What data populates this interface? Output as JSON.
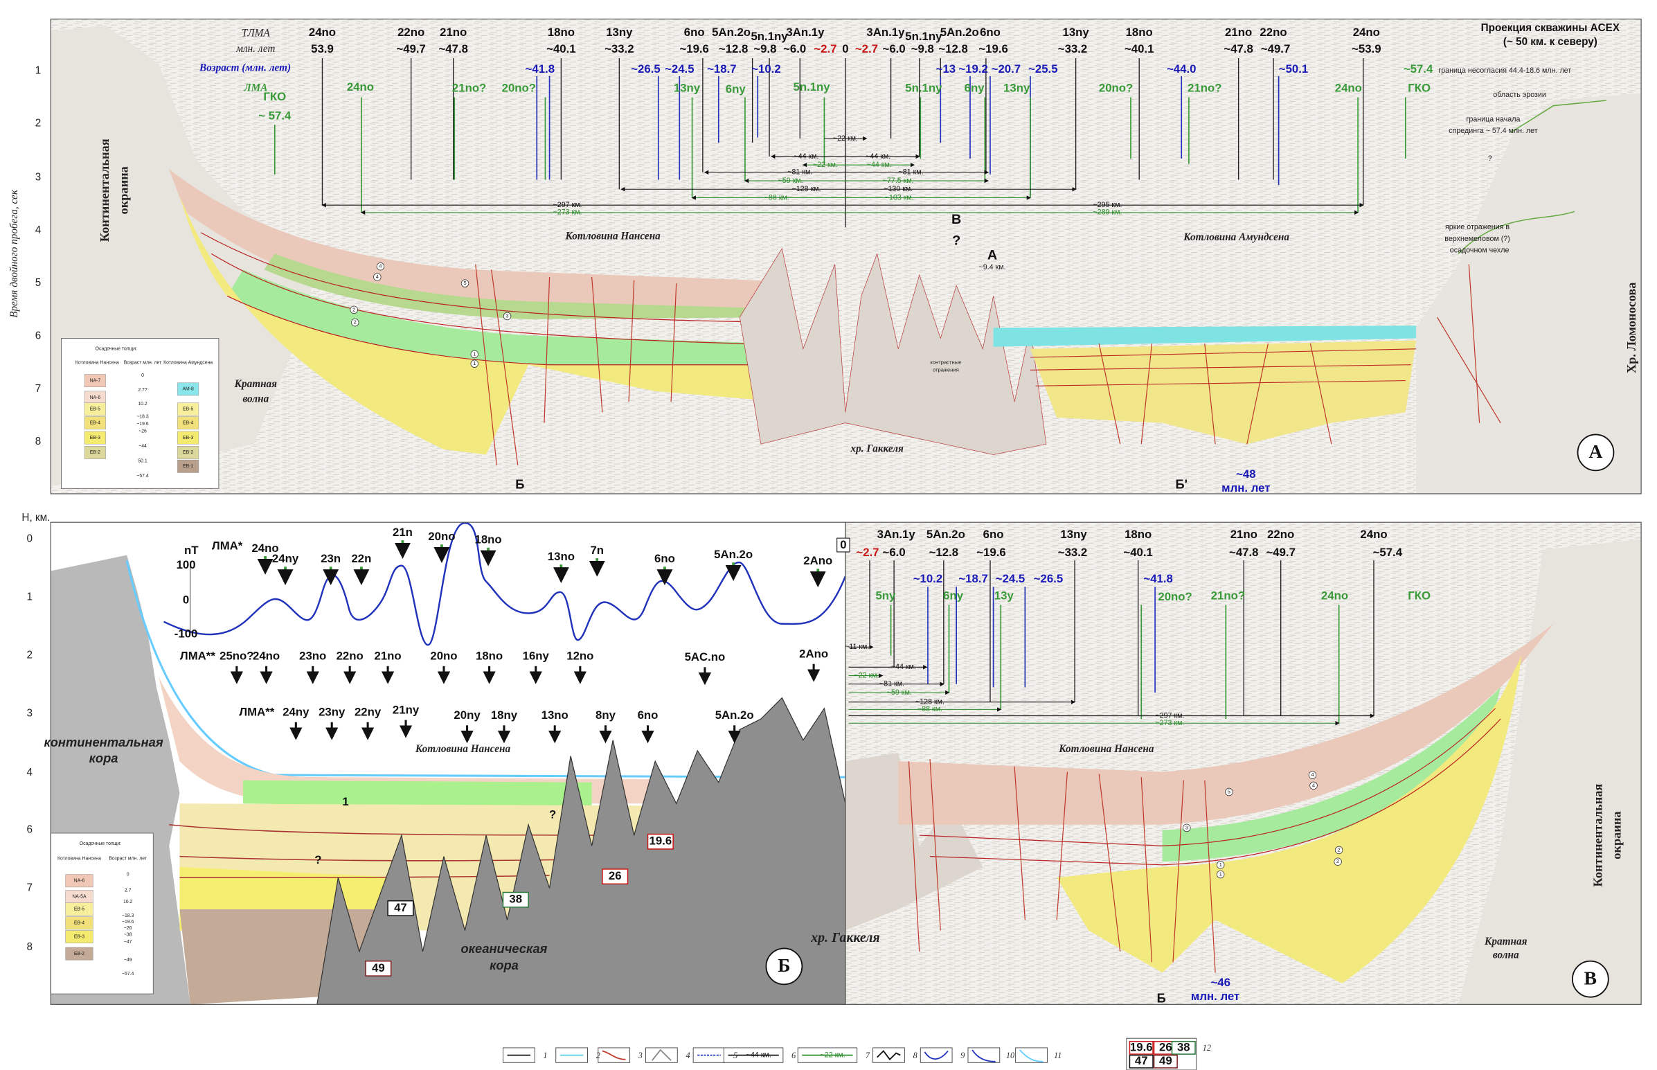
{
  "panel_a": {
    "y_axis_label": "Время двойного пробега, сек",
    "y_ticks": [
      1,
      2,
      3,
      4,
      5,
      6,
      7,
      8
    ],
    "row_labels": [
      "ТЛМА",
      "млн. лет",
      "Возраст (млн. лет)",
      "ЛМА"
    ],
    "chrons": [
      "24no",
      "22no",
      "21no",
      "18no",
      "13ny",
      "6no",
      "5An.2o",
      "5n.1ny",
      "3An.1y",
      "3An.1y",
      "5n.1ny",
      "5An.2o",
      "6no",
      "13ny",
      "18no",
      "21no",
      "22no",
      "24no"
    ],
    "ages": [
      "53.9",
      "~49.7",
      "~47.8",
      "~40.1",
      "~33.2",
      "~19.6",
      "~12.8",
      "~9.8",
      "~6.0",
      "~2.7",
      "0",
      "~2.7",
      "~6.0",
      "~9.8",
      "~12.8",
      "~19.6",
      "~33.2",
      "~40.1",
      "~47.8",
      "~49.7",
      "~53.9"
    ],
    "ages_blue": [
      "~41.8",
      "~26.5",
      "~24.5",
      "~18.7",
      "~10.2",
      "~13",
      "~19.2",
      "~20.7",
      "~25.5",
      "~44.0",
      "~50.1"
    ],
    "lma": [
      "ГКО",
      "~ 57.4",
      "24no",
      "21no?",
      "20no?",
      "13ny",
      "6ny",
      "5n.1ny",
      "5n.1ny",
      "6ny",
      "13ny",
      "20no?",
      "21no?",
      "24no",
      "~57.4",
      "ГКО"
    ],
    "distances": [
      "~22 км.",
      "~44 км.",
      "~22 км.",
      "~44 км.",
      "~44 км.",
      "~81 км.",
      "~59 км.",
      "~81 км.",
      "~77.5 км.",
      "~128 км.",
      "~88 км.",
      "~130 км.",
      "~103 км.",
      "~297 км.",
      "~273 км.",
      "~295 км.",
      "~289 км."
    ],
    "annotations": [
      "Проекция скважины ACEX",
      "(~ 50 км. к северу)",
      "граница несогласия 44.4-18.6 млн. лет",
      "область эрозии",
      "граница начала",
      "спрединга ~ 57.4 млн. лет",
      "яркие отражения в",
      "верхнемеловом (?)",
      "осадочном чехле",
      "Котловина Нансена",
      "Котловина Амундсена",
      "хр. Гаккеля",
      "Кратная",
      "волна",
      "B",
      "?",
      "A",
      "~9.4 км.",
      "контрастные",
      "отражения",
      "Б",
      "Б'",
      "~48",
      "млн. лет",
      "?"
    ],
    "vertical": [
      "Континентальная",
      "окраина",
      "Хр. Ломоносова"
    ],
    "circled": [
      "4",
      "4",
      "5",
      "2",
      "2",
      "3",
      "1",
      "1"
    ],
    "panel_label": "А",
    "inset": {
      "title": "Осадочные толщи:",
      "heads": [
        "Котловина Нансена",
        "Возраст млн. лет",
        "Котловина Амундсена"
      ],
      "units_left": [
        "NA-7",
        "NA-6",
        "EB-5",
        "EB-4",
        "EB-3",
        "EB-2"
      ],
      "ages": [
        "0",
        "2.7?",
        "10.2",
        "~18.3",
        "~19.6",
        "~26",
        "~44",
        "50.1",
        "~57.4"
      ],
      "units_right": [
        "AM-8",
        "EB-5",
        "EB-4",
        "EB-3",
        "EB-2",
        "EB-1"
      ]
    }
  },
  "panel_b": {
    "y_axis_label": "Н, км.",
    "y_ticks": [
      0,
      1,
      2,
      3,
      4,
      6,
      7,
      8
    ],
    "mag_unit": "nT",
    "mag_ticks": [
      100,
      0,
      -100
    ],
    "lma_star_label": "ЛМА*",
    "lma_star": [
      "24no",
      "24ny",
      "23n",
      "22n",
      "21n",
      "20no",
      "18no",
      "13no",
      "7n",
      "6no",
      "5An.2o",
      "2Ano"
    ],
    "zero_box": "0",
    "lma2_label_1": "ЛМА**",
    "lma2_row_1": [
      "25no?",
      "24no",
      "23no",
      "22no",
      "21no",
      "20no",
      "18no",
      "16ny",
      "12no",
      "5AC.no",
      "2Ano"
    ],
    "lma2_label_2": "ЛМА**",
    "lma2_row_2": [
      "24ny",
      "23ny",
      "22ny",
      "21ny",
      "20ny",
      "18ny",
      "13no",
      "8ny",
      "6no",
      "5An.2o"
    ],
    "annotations": [
      "Котловина Нансена",
      "континентальная",
      "кора",
      "океаническая",
      "кора",
      "хр. Гаккеля",
      "1",
      "?",
      "?"
    ],
    "boxed": [
      "19.6",
      "26",
      "38",
      "47",
      "49"
    ],
    "panel_label": "Б",
    "inset": {
      "title": "Осадочные толщи:",
      "heads": [
        "Котловина Нансена",
        "Возраст млн. лет"
      ],
      "units": [
        "NA-6",
        "NA-5A",
        "EB-5",
        "EB-4",
        "EB-3",
        "EB-2"
      ],
      "ages": [
        "0",
        "2.7",
        "10.2",
        "~18.3",
        "~19.6",
        "~26",
        "~38",
        "~47",
        "~49",
        "~57.4"
      ]
    }
  },
  "panel_v": {
    "chrons": [
      "3An.1y",
      "5An.2o",
      "6no",
      "13ny",
      "18no",
      "21no",
      "22no",
      "24no"
    ],
    "ages": [
      "~2.7",
      "~6.0",
      "~12.8",
      "~19.6",
      "~33.2",
      "~40.1",
      "~47.8",
      "~49.7",
      "~57.4"
    ],
    "ages_blue": [
      "~10.2",
      "~18.7",
      "~24.5",
      "~26.5",
      "~41.8"
    ],
    "lma": [
      "5ny",
      "6ny",
      "13y",
      "20no?",
      "21no?",
      "24no",
      "ГКО"
    ],
    "distances": [
      "~11 км.",
      "~22 км.",
      "~44 км.",
      "~81 км.",
      "~59 км.",
      "~128 км.",
      "~88 км.",
      "~297 км.",
      "~273 км."
    ],
    "annotations": [
      "Котловина Нансена",
      "Кратная",
      "волна",
      "Б",
      "~46",
      "млн. лет"
    ],
    "vertical": [
      "Континентальная",
      "окраина"
    ],
    "circled": [
      "4",
      "4",
      "5",
      "2",
      "2",
      "3",
      "1",
      "1"
    ],
    "panel_label": "В"
  },
  "legend": {
    "numbers": [
      "1",
      "2",
      "3",
      "4",
      "5",
      "6",
      "7",
      "8",
      "9",
      "10",
      "11",
      "12"
    ],
    "samples": [
      "~44 км.",
      "~22 км."
    ],
    "boxes": [
      "19.6",
      "26",
      "38",
      "47",
      "49"
    ]
  }
}
